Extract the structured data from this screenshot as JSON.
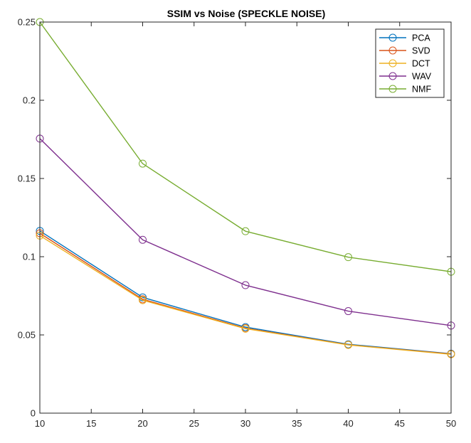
{
  "chart_data": {
    "type": "line",
    "title": "SSIM vs Noise (SPECKLE NOISE)",
    "xlabel": "",
    "ylabel": "",
    "x": [
      10,
      20,
      30,
      40,
      50
    ],
    "xlim": [
      10,
      50
    ],
    "ylim": [
      0,
      0.25
    ],
    "xticks": [
      10,
      15,
      20,
      25,
      30,
      35,
      40,
      45,
      50
    ],
    "yticks": [
      0,
      0.05,
      0.1,
      0.15,
      0.2,
      0.25
    ],
    "xtick_labels": [
      "10",
      "15",
      "20",
      "25",
      "30",
      "35",
      "40",
      "45",
      "50"
    ],
    "ytick_labels": [
      "0",
      "0.05",
      "0.1",
      "0.15",
      "0.2",
      "0.25"
    ],
    "grid": false,
    "legend_position": "top-right",
    "marker": "circle",
    "series": [
      {
        "name": "PCA",
        "color": "#0072BD",
        "values": [
          0.1165,
          0.074,
          0.055,
          0.044,
          0.038
        ]
      },
      {
        "name": "SVD",
        "color": "#D95319",
        "values": [
          0.115,
          0.0728,
          0.0543,
          0.0437,
          0.0378
        ]
      },
      {
        "name": "DCT",
        "color": "#EDB120",
        "values": [
          0.1135,
          0.0722,
          0.054,
          0.0436,
          0.0376
        ]
      },
      {
        "name": "WAV",
        "color": "#7E2F8E",
        "values": [
          0.1755,
          0.1108,
          0.0818,
          0.0652,
          0.056
        ]
      },
      {
        "name": "NMF",
        "color": "#77AC30",
        "values": [
          0.25,
          0.1595,
          0.1163,
          0.0997,
          0.0904
        ]
      }
    ]
  }
}
